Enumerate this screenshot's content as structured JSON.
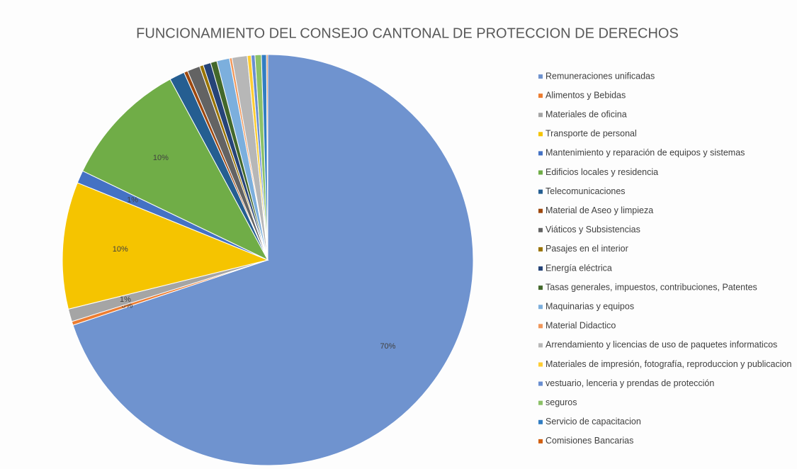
{
  "chart_data": {
    "type": "pie",
    "title": "FUNCIONAMIENTO DEL CONSEJO CANTONAL DE PROTECCION DE DERECHOS",
    "categories": [
      "Remuneraciones unificadas",
      "Alimentos y Bebidas",
      "Materiales de oficina",
      "Transporte de personal",
      "Mantenimiento y reparación de equipos y sistemas",
      "Edificios locales y residencia",
      "Telecomunicaciones",
      "Material de Aseo y limpieza",
      "Viáticos y Subsistencias",
      "Pasajes en el interior",
      "Energía eléctrica",
      "Tasas generales, impuestos, contribuciones, Patentes",
      "Maquinarias y equipos",
      "Material Didactico",
      "Arrendamiento y licencias de uso de paquetes informaticos",
      "Materiales de impresión, fotografía, reproduccion y publicacion",
      "vestuario, lenceria y prendas de protección",
      "seguros",
      "Servicio de capacitacion",
      "Comisiones Bancarias"
    ],
    "values": [
      70,
      0.3,
      1,
      10,
      1,
      10,
      1.2,
      0.3,
      1,
      0.3,
      0.6,
      0.5,
      1,
      0.2,
      1.2,
      0.3,
      0.3,
      0.5,
      0.4,
      0.1
    ],
    "value_labels": [
      "70%",
      "0%",
      "1%",
      "10%",
      "1%",
      "10%",
      null,
      null,
      null,
      null,
      null,
      null,
      null,
      null,
      null,
      null,
      null,
      null,
      null,
      null
    ],
    "colors": [
      "#6f93cf",
      "#ed7d31",
      "#a5a5a5",
      "#f5c400",
      "#4472c4",
      "#70ad47",
      "#255e91",
      "#9e480e",
      "#636363",
      "#997300",
      "#264478",
      "#43682b",
      "#7cafdd",
      "#f1975a",
      "#b7b7b7",
      "#ffcd33",
      "#698ed0",
      "#8cc168",
      "#327dc2",
      "#d26012"
    ],
    "legend": "right"
  }
}
